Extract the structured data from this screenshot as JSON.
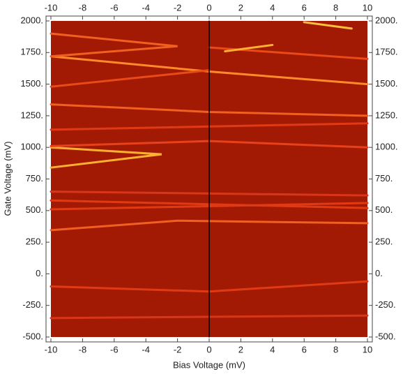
{
  "chart_data": {
    "type": "heatmap",
    "x_label": "Bias Voltage (mV)",
    "y_label": "Gate Voltage (mV)",
    "xlim": [
      -10,
      10
    ],
    "ylim": [
      -500,
      2000
    ],
    "xticks": [
      -10,
      -8,
      -6,
      -4,
      -2,
      0,
      2,
      4,
      6,
      8,
      10
    ],
    "yticks": [
      {
        "value": 2000,
        "label": "2000."
      },
      {
        "value": 1750,
        "label": "1750."
      },
      {
        "value": 1500,
        "label": "1500."
      },
      {
        "value": 1250,
        "label": "1250."
      },
      {
        "value": 1000,
        "label": "1000."
      },
      {
        "value": 750,
        "label": "750."
      },
      {
        "value": 500,
        "label": "500."
      },
      {
        "value": 250,
        "label": "250."
      },
      {
        "value": 0,
        "label": "0."
      },
      {
        "value": -250,
        "label": "-250."
      },
      {
        "value": -500,
        "label": "-500."
      }
    ],
    "color": "#a31a04",
    "lines": [
      {
        "x": [
          -10,
          -3,
          -10
        ],
        "values": [
          840,
          945,
          1000
        ],
        "color": "#ffb030"
      },
      {
        "x": [
          -10,
          0,
          10
        ],
        "values": [
          1010,
          1050,
          1000
        ],
        "color": "#e8401a"
      },
      {
        "x": [
          -10,
          10
        ],
        "values": [
          1140,
          1190
        ],
        "color": "#e03a14"
      },
      {
        "x": [
          -10,
          0,
          10
        ],
        "values": [
          1340,
          1280,
          1250
        ],
        "color": "#f06020"
      },
      {
        "x": [
          -10,
          0,
          10
        ],
        "values": [
          1720,
          1600,
          1500
        ],
        "color": "#ff8a2a"
      },
      {
        "x": [
          -10,
          0
        ],
        "values": [
          1480,
          1610
        ],
        "color": "#e84a18"
      },
      {
        "x": [
          -10,
          -2,
          -10
        ],
        "values": [
          1900,
          1800,
          1720
        ],
        "color": "#f06020"
      },
      {
        "x": [
          0,
          10
        ],
        "values": [
          1790,
          1700
        ],
        "color": "#e84a18"
      },
      {
        "x": [
          1,
          4
        ],
        "values": [
          1760,
          1810
        ],
        "color": "#ffb030"
      },
      {
        "x": [
          6,
          9
        ],
        "values": [
          1990,
          1940
        ],
        "color": "#ffc040"
      },
      {
        "x": [
          -10,
          -2,
          10
        ],
        "values": [
          345,
          420,
          400
        ],
        "color": "#f06020"
      },
      {
        "x": [
          -10,
          10
        ],
        "values": [
          510,
          560
        ],
        "color": "#e03a14"
      },
      {
        "x": [
          -10,
          10
        ],
        "values": [
          580,
          520
        ],
        "color": "#e03a14"
      },
      {
        "x": [
          -10,
          10
        ],
        "values": [
          650,
          620
        ],
        "color": "#d8361a"
      },
      {
        "x": [
          -10,
          0,
          10
        ],
        "values": [
          -100,
          -140,
          -60
        ],
        "color": "#e03a14"
      },
      {
        "x": [
          -10,
          10
        ],
        "values": [
          -350,
          -330
        ],
        "color": "#d8361a"
      },
      {
        "x": [
          0,
          0
        ],
        "values": [
          -500,
          2000
        ],
        "color": "#000000"
      }
    ]
  }
}
